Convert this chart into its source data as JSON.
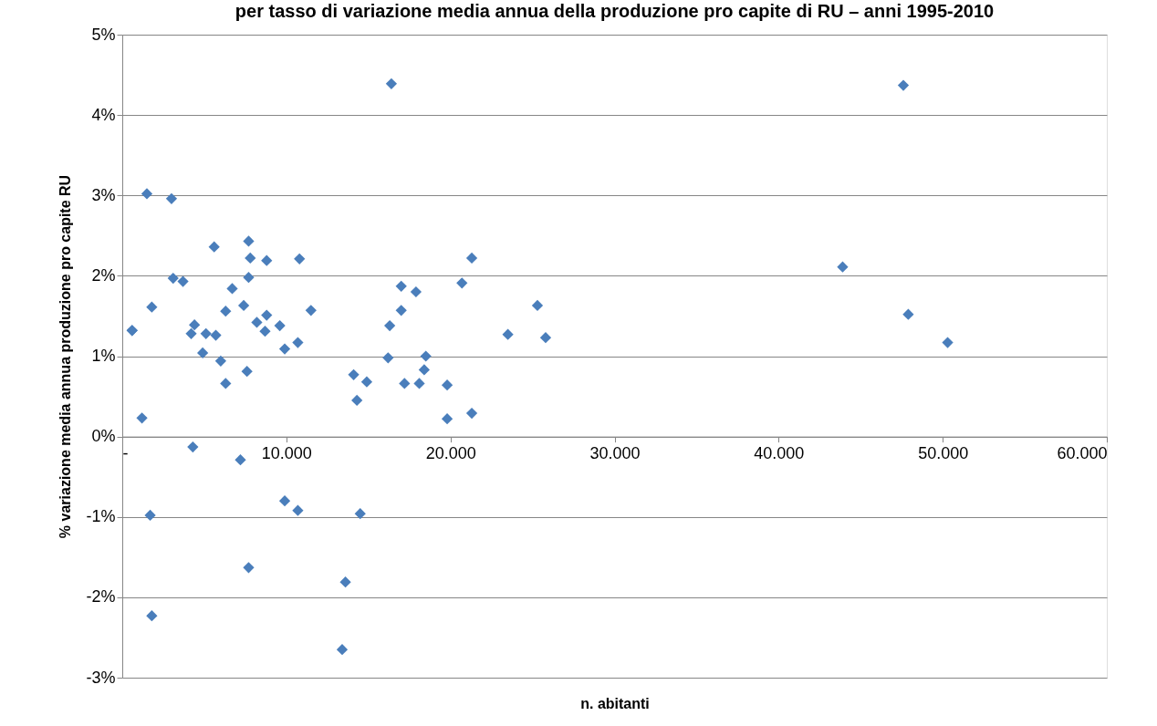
{
  "chart_data": {
    "type": "scatter",
    "title": "per tasso di variazione media annua della produzione pro capite di RU – anni 1995-2010",
    "xlabel": "n. abitanti",
    "ylabel": "% variazione media annua produzione pro capite RU",
    "x": [
      600,
      1500,
      3000,
      5600,
      7700,
      7800,
      8800,
      10800,
      3100,
      3700,
      7700,
      6700,
      1800,
      7400,
      6300,
      11500,
      8800,
      8200,
      8700,
      9600,
      600,
      4400,
      4200,
      5100,
      5700,
      10700,
      9900,
      4900,
      6000,
      7600,
      6300,
      1200,
      4300,
      21300,
      17000,
      17900,
      20700,
      17000,
      25300,
      16300,
      23500,
      25800,
      16200,
      18500,
      18400,
      14100,
      14900,
      17200,
      18100,
      19800,
      14300,
      19800,
      21300,
      7200,
      9900,
      10700,
      14500,
      1700,
      7700,
      13600,
      1800,
      13400,
      16400,
      47600,
      43900,
      47900,
      50300
    ],
    "series": [
      {
        "color": "#4a7ebb",
        "values": [
          1.32,
          3.02,
          2.96,
          2.36,
          2.43,
          2.22,
          2.19,
          2.21,
          1.97,
          1.93,
          1.98,
          1.84,
          1.61,
          1.63,
          1.56,
          1.57,
          1.51,
          1.42,
          1.31,
          1.38,
          1.32,
          1.39,
          1.28,
          1.28,
          1.26,
          1.17,
          1.09,
          1.04,
          0.94,
          0.81,
          0.66,
          0.23,
          -0.13,
          2.22,
          1.87,
          1.8,
          1.91,
          1.57,
          1.63,
          1.38,
          1.27,
          1.23,
          0.98,
          1.0,
          0.83,
          0.77,
          0.68,
          0.66,
          0.66,
          0.64,
          0.45,
          0.22,
          0.29,
          -0.29,
          -0.8,
          -0.92,
          -0.96,
          -0.98,
          -1.63,
          -1.81,
          -2.23,
          -2.65,
          4.39,
          4.37,
          2.11,
          1.52,
          1.17
        ]
      }
    ],
    "marker": "diamond",
    "grid": "y",
    "xlim": [
      0,
      60000
    ],
    "xticks": [
      {
        "value": 0,
        "label": "-"
      },
      {
        "value": 10000,
        "label": "10.000"
      },
      {
        "value": 20000,
        "label": "20.000"
      },
      {
        "value": 30000,
        "label": "30.000"
      },
      {
        "value": 40000,
        "label": "40.000"
      },
      {
        "value": 50000,
        "label": "50.000"
      },
      {
        "value": 60000,
        "label": "60.000"
      }
    ],
    "ylim": [
      -3,
      5
    ],
    "yticks": [
      {
        "value": -3,
        "label": "-3%"
      },
      {
        "value": -2,
        "label": "-2%"
      },
      {
        "value": -1,
        "label": "-1%"
      },
      {
        "value": 0,
        "label": "0%"
      },
      {
        "value": 1,
        "label": "1%"
      },
      {
        "value": 2,
        "label": "2%"
      },
      {
        "value": 3,
        "label": "3%"
      },
      {
        "value": 4,
        "label": "4%"
      },
      {
        "value": 5,
        "label": "5%"
      }
    ]
  }
}
